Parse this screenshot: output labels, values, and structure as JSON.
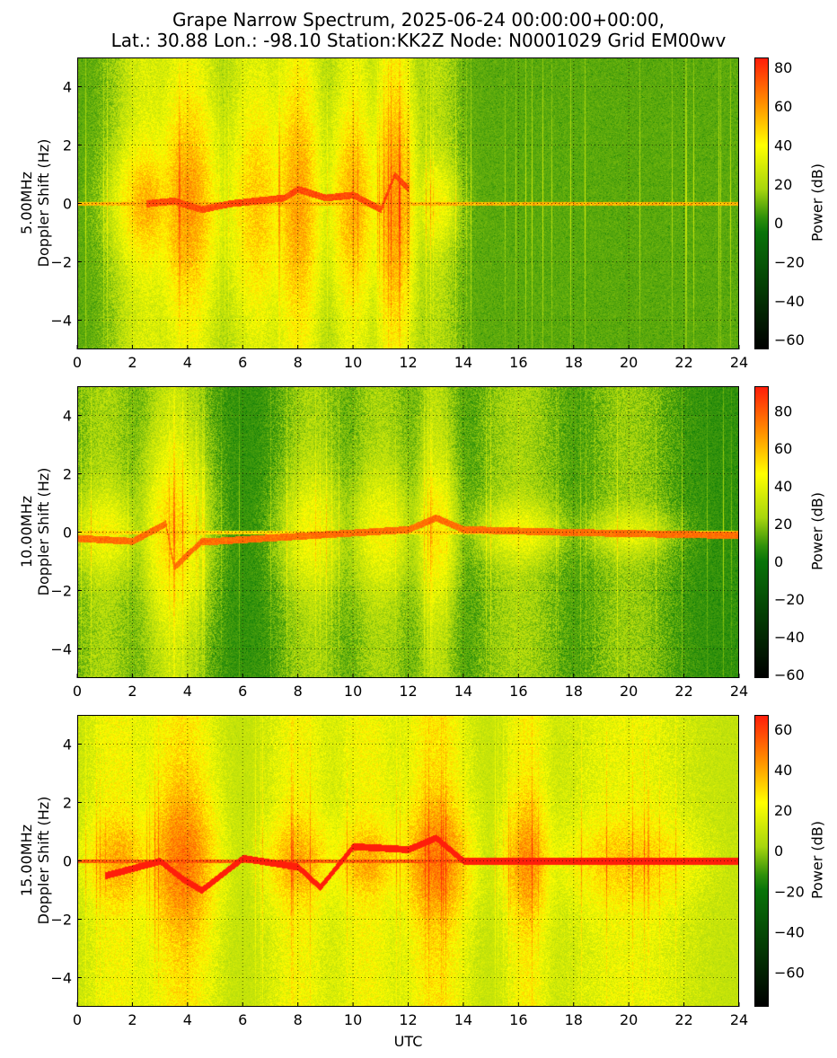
{
  "title_line1": "Grape Narrow Spectrum, 2025-06-24 00:00:00+00:00,",
  "title_line2": "Lat.: 30.88 Lon.: -98.10 Station:KK2Z Node: N0001029 Grid EM00wv",
  "xlabel": "UTC",
  "colorbar_label": "Power (dB)",
  "colormap": [
    "#000000",
    "#0a7a0a",
    "#a8d60e",
    "#ffff00",
    "#ff8c00",
    "#ff1e0a"
  ],
  "chart_data": [
    {
      "type": "heatmap",
      "title": "",
      "ylabel_line1": "5.00MHz",
      "ylabel_line2": "Doppler Shift (Hz)",
      "xlim": [
        0,
        24
      ],
      "ylim": [
        -5,
        5
      ],
      "xticks": [
        "0",
        "2",
        "4",
        "6",
        "8",
        "10",
        "12",
        "14",
        "16",
        "18",
        "20",
        "22",
        "24"
      ],
      "yticks": [
        "4",
        "2",
        "0",
        "−2",
        "−4"
      ],
      "clim": [
        -65,
        85
      ],
      "cticks": [
        "80",
        "60",
        "40",
        "20",
        "0",
        "−20",
        "−40",
        "−60"
      ],
      "grid": true,
      "carrier_hz": 0.0,
      "activity": [
        {
          "t": 2.5,
          "w": 1.5,
          "spread": 2.0,
          "power": 55
        },
        {
          "t": 4.0,
          "w": 1.5,
          "spread": 3.5,
          "power": 60
        },
        {
          "t": 6.5,
          "w": 1.5,
          "spread": 4.0,
          "power": 50
        },
        {
          "t": 8.0,
          "w": 1.2,
          "spread": 4.5,
          "power": 58
        },
        {
          "t": 10.0,
          "w": 1.2,
          "spread": 3.5,
          "power": 55
        },
        {
          "t": 11.5,
          "w": 1.0,
          "spread": 4.5,
          "power": 60
        },
        {
          "t": 13.0,
          "w": 1.0,
          "spread": 1.5,
          "power": 40
        }
      ],
      "trace": [
        [
          2.5,
          0.0
        ],
        [
          3.5,
          0.1
        ],
        [
          4.5,
          -0.2
        ],
        [
          5.5,
          0.0
        ],
        [
          6.5,
          0.1
        ],
        [
          7.5,
          0.2
        ],
        [
          8.0,
          0.5
        ],
        [
          9.0,
          0.2
        ],
        [
          10.0,
          0.3
        ],
        [
          11.0,
          -0.2
        ],
        [
          11.5,
          1.0
        ],
        [
          12.0,
          0.5
        ]
      ]
    },
    {
      "type": "heatmap",
      "title": "",
      "ylabel_line1": "10.00MHz",
      "ylabel_line2": "Doppler Shift (Hz)",
      "xlim": [
        0,
        24
      ],
      "ylim": [
        -5,
        5
      ],
      "xticks": [
        "0",
        "2",
        "4",
        "6",
        "8",
        "10",
        "12",
        "14",
        "16",
        "18",
        "20",
        "22",
        "24"
      ],
      "yticks": [
        "4",
        "2",
        "0",
        "−2",
        "−4"
      ],
      "clim": [
        -62,
        93
      ],
      "cticks": [
        "80",
        "60",
        "40",
        "20",
        "0",
        "−20",
        "−40",
        "−60"
      ],
      "grid": true,
      "carrier_hz": 0.0,
      "activity": [
        {
          "t": 1.0,
          "w": 1.5,
          "spread": 1.5,
          "power": 45
        },
        {
          "t": 3.5,
          "w": 1.5,
          "spread": 3.0,
          "power": 55
        },
        {
          "t": 8.5,
          "w": 1.5,
          "spread": 2.0,
          "power": 45
        },
        {
          "t": 11.0,
          "w": 1.5,
          "spread": 2.0,
          "power": 45
        },
        {
          "t": 13.0,
          "w": 1.0,
          "spread": 2.5,
          "power": 50
        },
        {
          "t": 16.0,
          "w": 2.0,
          "spread": 1.0,
          "power": 45
        },
        {
          "t": 20.0,
          "w": 2.0,
          "spread": 0.8,
          "power": 40
        }
      ],
      "trace": [
        [
          0.0,
          -0.2
        ],
        [
          2.0,
          -0.3
        ],
        [
          3.2,
          0.3
        ],
        [
          3.5,
          -1.2
        ],
        [
          4.5,
          -0.3
        ],
        [
          5.0,
          -0.3
        ],
        [
          12.0,
          0.1
        ],
        [
          13.0,
          0.5
        ],
        [
          14.0,
          0.1
        ],
        [
          18.0,
          0.0
        ],
        [
          24.0,
          -0.1
        ]
      ]
    },
    {
      "type": "heatmap",
      "title": "",
      "ylabel_line1": "15.00MHz",
      "ylabel_line2": "Doppler Shift (Hz)",
      "xlim": [
        0,
        24
      ],
      "ylim": [
        -5,
        5
      ],
      "xticks": [
        "0",
        "2",
        "4",
        "6",
        "8",
        "10",
        "12",
        "14",
        "16",
        "18",
        "20",
        "22",
        "24"
      ],
      "yticks": [
        "4",
        "2",
        "0",
        "−2",
        "−4"
      ],
      "clim": [
        -77,
        67
      ],
      "cticks": [
        "60",
        "40",
        "20",
        "0",
        "−20",
        "−40",
        "−60"
      ],
      "grid": true,
      "carrier_hz": 0.0,
      "activity": [
        {
          "t": 1.5,
          "w": 1.5,
          "spread": 1.5,
          "power": 40
        },
        {
          "t": 3.8,
          "w": 1.5,
          "spread": 2.5,
          "power": 50
        },
        {
          "t": 8.0,
          "w": 1.5,
          "spread": 1.5,
          "power": 40
        },
        {
          "t": 10.5,
          "w": 1.5,
          "spread": 1.2,
          "power": 40
        },
        {
          "t": 13.0,
          "w": 1.5,
          "spread": 2.0,
          "power": 50
        },
        {
          "t": 16.3,
          "w": 1.0,
          "spread": 2.0,
          "power": 45
        },
        {
          "t": 20.0,
          "w": 3.0,
          "spread": 1.5,
          "power": 35
        }
      ],
      "trace": [
        [
          1.0,
          -0.5
        ],
        [
          3.0,
          0.0
        ],
        [
          3.8,
          -0.6
        ],
        [
          4.5,
          -1.0
        ],
        [
          6.0,
          0.1
        ],
        [
          8.0,
          -0.2
        ],
        [
          8.8,
          -0.9
        ],
        [
          10.0,
          0.5
        ],
        [
          12.0,
          0.4
        ],
        [
          13.0,
          0.8
        ],
        [
          14.0,
          0.0
        ],
        [
          24.0,
          0.0
        ]
      ]
    }
  ]
}
